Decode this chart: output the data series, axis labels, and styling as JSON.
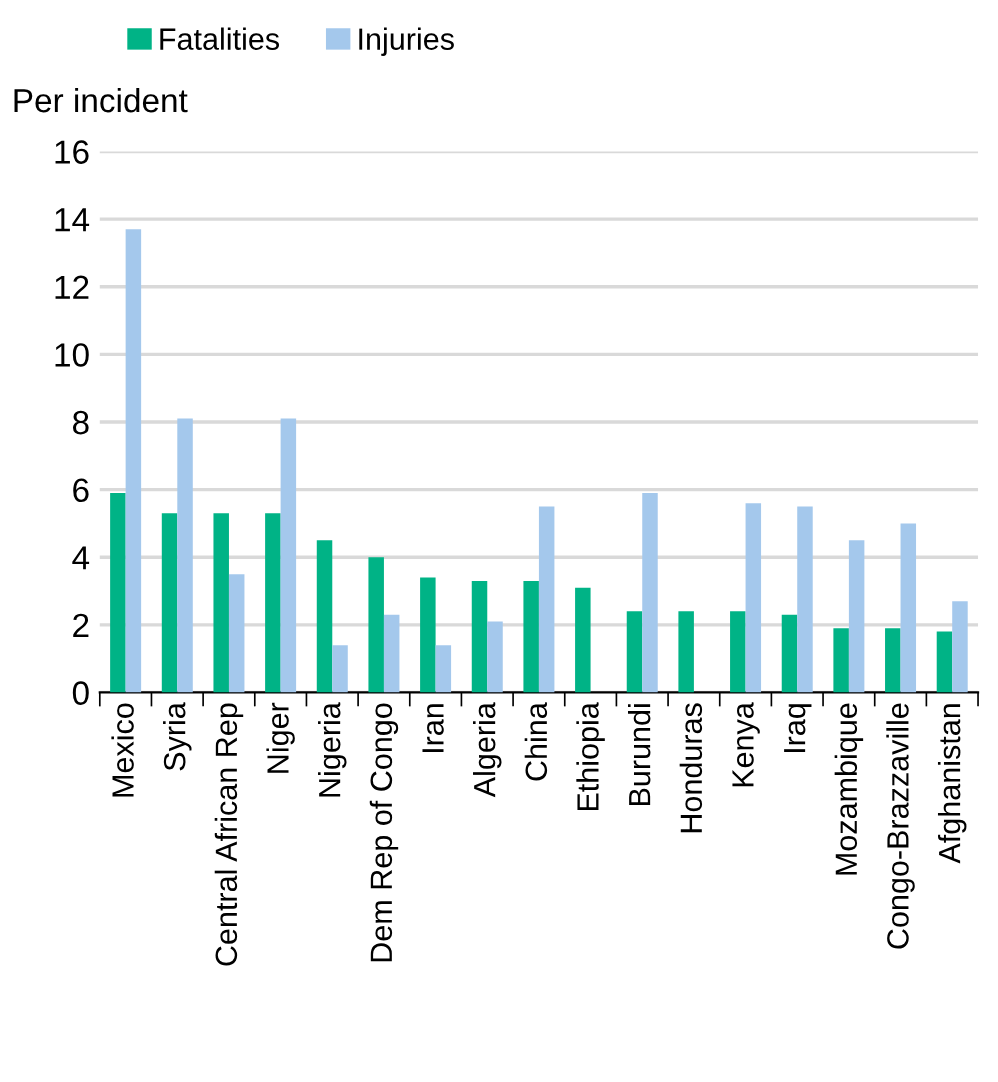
{
  "chart_data": {
    "type": "bar",
    "ylabel": "Per incident",
    "categories": [
      "Mexico",
      "Syria",
      "Central African Rep",
      "Niger",
      "Nigeria",
      "Dem Rep of Congo",
      "Iran",
      "Algeria",
      "China",
      "Ethiopia",
      "Burundi",
      "Honduras",
      "Kenya",
      "Iraq",
      "Mozambique",
      "Congo-Brazzaville",
      "Afghanistan"
    ],
    "series": [
      {
        "name": "Fatalities",
        "color": "#00b386",
        "values": [
          5.9,
          5.3,
          5.3,
          5.3,
          4.5,
          4.0,
          3.4,
          3.3,
          3.3,
          3.1,
          2.4,
          2.4,
          2.4,
          2.3,
          1.9,
          1.9,
          1.8
        ]
      },
      {
        "name": "Injuries",
        "color": "#a4c8ec",
        "values": [
          13.7,
          8.1,
          3.5,
          8.1,
          1.4,
          2.3,
          1.4,
          2.1,
          5.5,
          null,
          5.9,
          null,
          5.6,
          5.5,
          4.5,
          5.0,
          2.7
        ]
      }
    ],
    "ylim": [
      0,
      16
    ],
    "yticks": [
      0,
      2,
      4,
      6,
      8,
      10,
      12,
      14,
      16
    ],
    "grid": "y",
    "legend": "top left"
  }
}
